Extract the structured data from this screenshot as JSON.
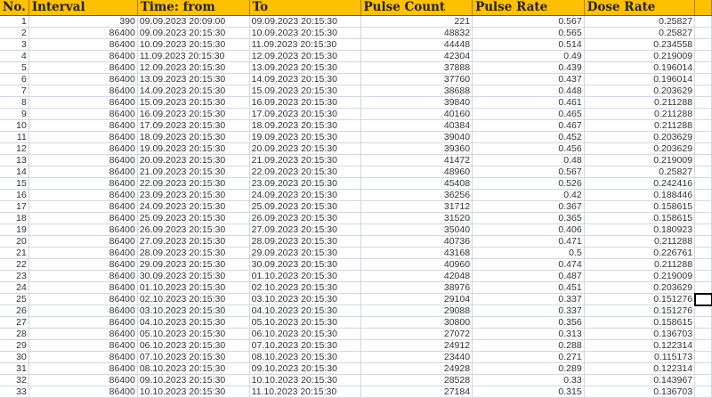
{
  "headers": [
    "No.",
    "Interval",
    "Time: from",
    "To",
    "Pulse Count",
    "Pulse Rate",
    "Dose Rate",
    ""
  ],
  "accent_color": "#FFC000",
  "rows": [
    [
      1,
      390,
      "09.09.2023 20:09:00",
      "09.09.2023 20:15:30",
      221,
      0.567,
      0.25827
    ],
    [
      2,
      86400,
      "09.09.2023 20:15:30",
      "10.09.2023 20:15:30",
      48832,
      0.565,
      0.25827
    ],
    [
      3,
      86400,
      "10.09.2023 20:15:30",
      "11.09.2023 20:15:30",
      44448,
      0.514,
      0.234558
    ],
    [
      4,
      86400,
      "11.09.2023 20:15:30",
      "12.09.2023 20:15:30",
      42304,
      0.49,
      0.219009
    ],
    [
      5,
      86400,
      "12.09.2023 20:15:30",
      "13.09.2023 20:15:30",
      37888,
      0.439,
      0.196014
    ],
    [
      6,
      86400,
      "13.09.2023 20:15:30",
      "14.09.2023 20:15:30",
      37760,
      0.437,
      0.196014
    ],
    [
      7,
      86400,
      "14.09.2023 20:15:30",
      "15.09.2023 20:15:30",
      38688,
      0.448,
      0.203629
    ],
    [
      8,
      86400,
      "15.09.2023 20:15:30",
      "16.09.2023 20:15:30",
      39840,
      0.461,
      0.211288
    ],
    [
      9,
      86400,
      "16.09.2023 20:15:30",
      "17.09.2023 20:15:30",
      40160,
      0.465,
      0.211288
    ],
    [
      10,
      86400,
      "17.09.2023 20:15:30",
      "18.09.2023 20:15:30",
      40384,
      0.467,
      0.211288
    ],
    [
      11,
      86400,
      "18.09.2023 20:15:30",
      "19.09.2023 20:15:30",
      39040,
      0.452,
      0.203629
    ],
    [
      12,
      86400,
      "19.09.2023 20:15:30",
      "20.09.2023 20:15:30",
      39360,
      0.456,
      0.203629
    ],
    [
      13,
      86400,
      "20.09.2023 20:15:30",
      "21.09.2023 20:15:30",
      41472,
      0.48,
      0.219009
    ],
    [
      14,
      86400,
      "21.09.2023 20:15:30",
      "22.09.2023 20:15:30",
      48960,
      0.567,
      0.25827
    ],
    [
      15,
      86400,
      "22.09.2023 20:15:30",
      "23.09.2023 20:15:30",
      45408,
      0.526,
      0.242416
    ],
    [
      16,
      86400,
      "23.09.2023 20:15:30",
      "24.09.2023 20:15:30",
      36256,
      0.42,
      0.188446
    ],
    [
      17,
      86400,
      "24.09.2023 20:15:30",
      "25.09.2023 20:15:30",
      31712,
      0.367,
      0.158615
    ],
    [
      18,
      86400,
      "25.09.2023 20:15:30",
      "26.09.2023 20:15:30",
      31520,
      0.365,
      0.158615
    ],
    [
      19,
      86400,
      "26.09.2023 20:15:30",
      "27.09.2023 20:15:30",
      35040,
      0.406,
      0.180923
    ],
    [
      20,
      86400,
      "27.09.2023 20:15:30",
      "28.09.2023 20:15:30",
      40736,
      0.471,
      0.211288
    ],
    [
      21,
      86400,
      "28.09.2023 20:15:30",
      "29.09.2023 20:15:30",
      43168,
      0.5,
      0.226761
    ],
    [
      22,
      86400,
      "29.09.2023 20:15:30",
      "30.09.2023 20:15:30",
      40960,
      0.474,
      0.211288
    ],
    [
      23,
      86400,
      "30.09.2023 20:15:30",
      "01.10.2023 20:15:30",
      42048,
      0.487,
      0.219009
    ],
    [
      24,
      86400,
      "01.10.2023 20:15:30",
      "02.10.2023 20:15:30",
      38976,
      0.451,
      0.203629
    ],
    [
      25,
      86400,
      "02.10.2023 20:15:30",
      "03.10.2023 20:15:30",
      29104,
      0.337,
      0.151276
    ],
    [
      26,
      86400,
      "03.10.2023 20:15:30",
      "04.10.2023 20:15:30",
      29088,
      0.337,
      0.151276
    ],
    [
      27,
      86400,
      "04.10.2023 20:15:30",
      "05.10.2023 20:15:30",
      30800,
      0.356,
      0.158615
    ],
    [
      28,
      86400,
      "05.10.2023 20:15:30",
      "06.10.2023 20:15:30",
      27072,
      0.313,
      0.136703
    ],
    [
      29,
      86400,
      "06.10.2023 20:15:30",
      "07.10.2023 20:15:30",
      24912,
      0.288,
      0.122314
    ],
    [
      30,
      86400,
      "07.10.2023 20:15:30",
      "08.10.2023 20:15:30",
      23440,
      0.271,
      0.115173
    ],
    [
      31,
      86400,
      "08.10.2023 20:15:30",
      "09.10.2023 20:15:30",
      24928,
      0.289,
      0.122314
    ],
    [
      32,
      86400,
      "09.10.2023 20:15:30",
      "10.10.2023 20:15:30",
      28528,
      0.33,
      0.143967
    ],
    [
      33,
      86400,
      "10.10.2023 20:15:30",
      "11.10.2023 20:15:30",
      27184,
      0.315,
      0.136703
    ]
  ]
}
